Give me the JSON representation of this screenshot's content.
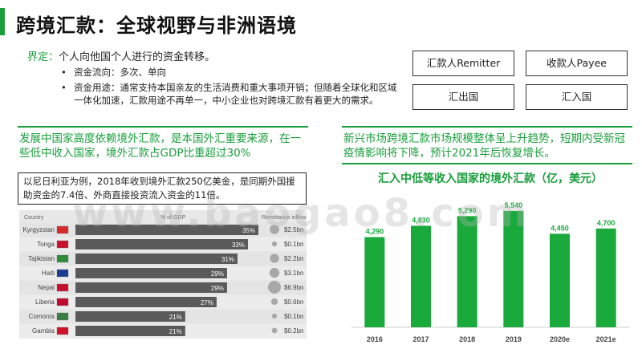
{
  "page": {
    "title": "跨境汇款：全球视野与非洲语境",
    "definition_label": "界定：",
    "definition_text": "个人向他国个人进行的资金转移。",
    "bullets": [
      "资金流向：多次、单向",
      "资金用途：通常支持本国亲友的生活消费和重大事项开销；但随着全球化和区域一体化加速，汇款用途不再单一，中小企业也对跨境汇款有着更大的需求。"
    ],
    "boxes": {
      "remitter": "汇款人Remitter",
      "payee": "收款人Payee",
      "sending_country": "汇出国",
      "receiving_country": "汇入国"
    },
    "left_highlight": "发展中国家高度依赖境外汇款，是本国外汇重要来源，在一些低中收入国家，境外汇款占GDP比重超过30%",
    "right_highlight": "新兴市场跨境汇款市场规模整体呈上升趋势，短期内受新冠疫情影响将下降，预计2021年后恢复增长。",
    "note": "以尼日利亚为例，2018年收到境外汇款250亿美金，是同期外国援助资金的7.4倍、外商直接投资流入资金的11倍。",
    "watermark": "www.baogao8.com"
  },
  "remit_table": {
    "headers": [
      "Country",
      "% of GDP",
      "Remittance inflow"
    ],
    "rows": [
      {
        "country": "Kyrgyzstan",
        "pct": 35,
        "pct_label": "35%",
        "inflow": "$2.5bn",
        "flag": "#d42a2a"
      },
      {
        "country": "Tonga",
        "pct": 33,
        "pct_label": "33%",
        "inflow": "$0.1bn",
        "flag": "#c8102e"
      },
      {
        "country": "Tajikistan",
        "pct": 31,
        "pct_label": "31%",
        "inflow": "$2.2bn",
        "flag": "#2e8b3a"
      },
      {
        "country": "Haiti",
        "pct": 29,
        "pct_label": "29%",
        "inflow": "$3.1bn",
        "flag": "#1b3d8f"
      },
      {
        "country": "Nepal",
        "pct": 29,
        "pct_label": "29%",
        "inflow": "$6.9bn",
        "flag": "#c8102e"
      },
      {
        "country": "Liberia",
        "pct": 27,
        "pct_label": "27%",
        "inflow": "$0.6bn",
        "flag": "#bf0a30"
      },
      {
        "country": "Comoros",
        "pct": 21,
        "pct_label": "21%",
        "inflow": "$0.1bn",
        "flag": "#3a7d44"
      },
      {
        "country": "Gambia",
        "pct": 21,
        "pct_label": "21%",
        "inflow": "$0.2bn",
        "flag": "#ce1126"
      }
    ],
    "inflow_values": [
      2.5,
      0.1,
      2.2,
      3.1,
      6.9,
      0.6,
      0.1,
      0.2
    ]
  },
  "chart_data": {
    "type": "bar",
    "title": "汇入中低等收入国家的境外汇款（亿，美元）",
    "categories": [
      "2016",
      "2017",
      "2018",
      "2019",
      "2020e",
      "2021e"
    ],
    "values": [
      4290,
      4830,
      5290,
      5540,
      4450,
      4700
    ],
    "value_labels": [
      "4,290",
      "4,830",
      "5,290",
      "5,540",
      "4,450",
      "4,700"
    ],
    "ylim": [
      0,
      5800
    ],
    "color": "#1aaa3c",
    "grid": false,
    "legend": "none"
  },
  "colors": {
    "accent": "#1a9e3c",
    "bar": "#1aaa3c",
    "table_bar": "#5a5a5a"
  }
}
